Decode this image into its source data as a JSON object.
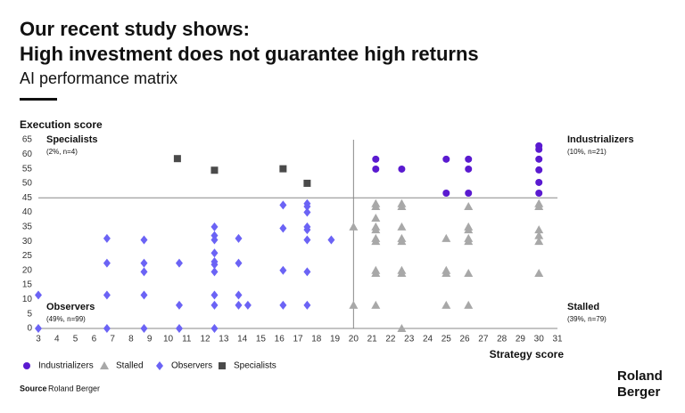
{
  "chart_data": {
    "type": "scatter",
    "title": "Our recent study shows:",
    "title_line2": "High investment does not guarantee high returns",
    "subtitle": "AI performance matrix",
    "ylabel": "Execution score",
    "xlabel": "Strategy score",
    "xlim": [
      3,
      31
    ],
    "ylim": [
      0,
      65
    ],
    "xticks": [
      3,
      4,
      5,
      6,
      7,
      8,
      9,
      10,
      11,
      12,
      13,
      14,
      15,
      16,
      17,
      18,
      19,
      20,
      21,
      22,
      23,
      24,
      25,
      26,
      27,
      28,
      29,
      30,
      31
    ],
    "yticks": [
      0,
      5,
      10,
      15,
      20,
      25,
      30,
      35,
      40,
      45,
      50,
      55,
      60,
      65
    ],
    "xdivider": 20,
    "ydivider": 45,
    "annotations": [
      {
        "text": "Specialists",
        "note": "(2%, n=4)"
      },
      {
        "text": "Industrializers",
        "note": "(10%, n=21)"
      },
      {
        "text": "Observers",
        "note": "(49%, n=99)"
      },
      {
        "text": "Stalled",
        "note": "(39%, n=79)"
      }
    ],
    "series": [
      {
        "name": "Industrializers",
        "color": "#5a1ad0",
        "marker": "circle",
        "x": [
          21.2,
          21.2,
          22.6,
          25,
          25,
          26.2,
          26.2,
          26.2,
          30,
          30,
          30,
          30,
          30,
          30
        ],
        "values": [
          58.3,
          54.9,
          54.9,
          58.3,
          46.6,
          58.3,
          54.9,
          46.6,
          62.9,
          61.7,
          58.3,
          54.6,
          50.3,
          46.6
        ]
      },
      {
        "name": "Stalled",
        "color": "#a8a8a8",
        "marker": "triangle",
        "x": [
          20,
          20,
          21.2,
          21.2,
          21.2,
          21.2,
          21.2,
          21.2,
          21.2,
          21.2,
          21.2,
          21.2,
          22.6,
          22.6,
          22.6,
          22.6,
          22.6,
          22.6,
          22.6,
          22.6,
          25,
          25,
          25,
          25,
          26.2,
          26.2,
          26.2,
          26.2,
          26.2,
          26.2,
          26.2,
          30,
          30,
          30,
          30,
          30,
          30
        ],
        "values": [
          35,
          8,
          43,
          42,
          38,
          35,
          34,
          31,
          30,
          20,
          19,
          8,
          43,
          42,
          35,
          31,
          30,
          20,
          19,
          0,
          31,
          20,
          19,
          8,
          42,
          35,
          34,
          31,
          30,
          19,
          8,
          43,
          42,
          34,
          32,
          30,
          19
        ]
      },
      {
        "name": "Observers",
        "color": "#6b63f5",
        "marker": "diamond",
        "x": [
          3,
          3,
          6.7,
          6.7,
          6.7,
          6.7,
          8.7,
          8.7,
          8.7,
          8.7,
          8.7,
          10.6,
          10.6,
          10.6,
          12.5,
          12.5,
          12.5,
          12.5,
          12.5,
          12.5,
          12.5,
          12.5,
          12.5,
          12.5,
          13.8,
          13.8,
          13.8,
          13.8,
          14.3,
          16.2,
          16.2,
          16.2,
          16.2,
          17.5,
          17.5,
          17.5,
          17.5,
          17.5,
          17.5,
          17.5,
          17.5,
          18.8
        ],
        "values": [
          11.5,
          0,
          31,
          22.5,
          11.5,
          0,
          30.5,
          22.5,
          19.5,
          11.5,
          0,
          22.5,
          8,
          0,
          35,
          32,
          30.5,
          26,
          23,
          22,
          19.5,
          11.5,
          8,
          0,
          31,
          22.5,
          11.5,
          8,
          8,
          42.5,
          34.5,
          20,
          8,
          43,
          42,
          40,
          35,
          34,
          30.5,
          19.5,
          8,
          30.5
        ]
      },
      {
        "name": "Specialists",
        "color": "#4a4a4a",
        "marker": "square",
        "x": [
          10.5,
          12.5,
          16.2,
          17.5
        ],
        "values": [
          58.5,
          54.5,
          55,
          50
        ]
      }
    ],
    "source_label": "Source",
    "source": "Roland Berger",
    "logo": [
      "Roland",
      "Berger"
    ]
  }
}
